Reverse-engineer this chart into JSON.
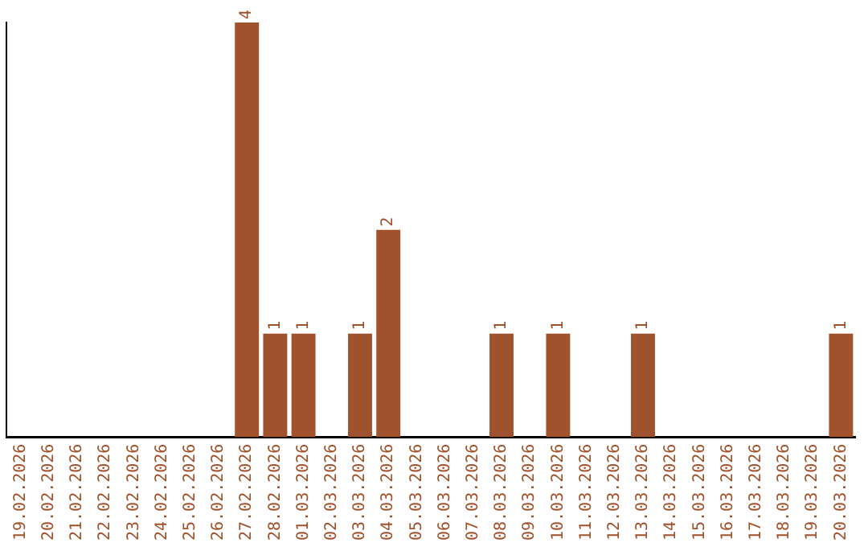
{
  "chart_data": {
    "type": "bar",
    "categories": [
      "19.02.2026",
      "20.02.2026",
      "21.02.2026",
      "22.02.2026",
      "23.02.2026",
      "24.02.2026",
      "25.02.2026",
      "26.02.2026",
      "27.02.2026",
      "28.02.2026",
      "01.03.2026",
      "02.03.2026",
      "03.03.2026",
      "04.03.2026",
      "05.03.2026",
      "06.03.2026",
      "07.03.2026",
      "08.03.2026",
      "09.03.2026",
      "10.03.2026",
      "11.03.2026",
      "12.03.2026",
      "13.03.2026",
      "14.03.2026",
      "15.03.2026",
      "16.03.2026",
      "17.03.2026",
      "18.03.2026",
      "19.03.2026",
      "20.03.2026"
    ],
    "values": [
      0,
      0,
      0,
      0,
      0,
      0,
      0,
      0,
      4,
      1,
      1,
      0,
      1,
      2,
      0,
      0,
      0,
      1,
      0,
      1,
      0,
      0,
      1,
      0,
      0,
      0,
      0,
      0,
      0,
      1
    ],
    "value_labels": [
      null,
      null,
      null,
      null,
      null,
      null,
      null,
      null,
      "4",
      "1",
      "1",
      null,
      "1",
      "2",
      null,
      null,
      null,
      "1",
      null,
      "1",
      null,
      null,
      "1",
      null,
      null,
      null,
      null,
      null,
      null,
      "1"
    ],
    "color": "#a0522d",
    "tick_labels": "x"
  }
}
